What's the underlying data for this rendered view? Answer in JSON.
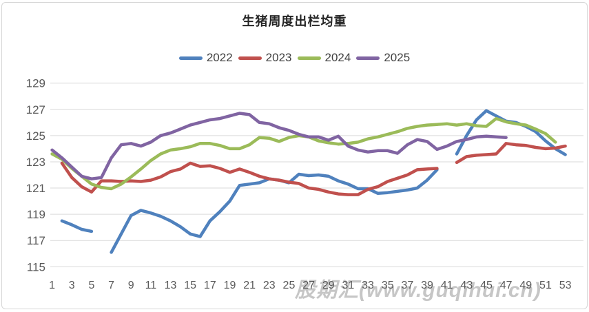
{
  "chart": {
    "title": "生猪周度出栏均重",
    "watermark": "股期汇(www.guqihui.cn)",
    "tick_color": "#595959",
    "gridline_color": "#d9d9d9"
  },
  "chart_data": {
    "type": "line",
    "title": "生猪周度出栏均重",
    "xlabel": "",
    "ylabel": "",
    "ylim": [
      115,
      129
    ],
    "y_ticks": [
      115,
      117,
      119,
      121,
      123,
      125,
      127,
      129
    ],
    "x_range": [
      1,
      53
    ],
    "x_tick_values": [
      1,
      3,
      5,
      7,
      9,
      11,
      13,
      15,
      17,
      19,
      21,
      23,
      25,
      27,
      29,
      31,
      33,
      35,
      37,
      39,
      41,
      43,
      45,
      47,
      49,
      51,
      53
    ],
    "grid": "horizontal",
    "legend_position": "top",
    "series": [
      {
        "name": "2022",
        "color": "#4F81BD",
        "values": [
          null,
          118.5,
          118.2,
          117.85,
          117.7,
          null,
          116.1,
          117.5,
          118.9,
          119.3,
          119.1,
          118.85,
          118.5,
          118.05,
          117.5,
          117.3,
          118.5,
          119.2,
          120.0,
          121.2,
          121.3,
          121.4,
          121.7,
          121.6,
          121.4,
          122.05,
          121.95,
          122.0,
          121.9,
          121.55,
          121.3,
          120.95,
          120.95,
          120.6,
          120.65,
          120.75,
          120.85,
          121.0,
          121.6,
          122.4,
          null,
          123.6,
          125.0,
          126.2,
          126.9,
          126.5,
          126.1,
          126.0,
          125.7,
          125.3,
          124.6,
          124.0,
          123.55
        ]
      },
      {
        "name": "2023",
        "color": "#C0504D",
        "values": [
          null,
          122.9,
          121.8,
          121.1,
          120.7,
          121.55,
          121.55,
          121.5,
          121.55,
          121.5,
          121.6,
          121.85,
          122.25,
          122.45,
          122.9,
          122.65,
          122.7,
          122.5,
          122.2,
          122.45,
          122.2,
          121.9,
          121.7,
          121.6,
          121.45,
          121.35,
          121.0,
          120.9,
          120.7,
          120.55,
          120.5,
          120.5,
          120.9,
          121.1,
          121.5,
          121.75,
          122.0,
          122.4,
          122.45,
          122.5,
          null,
          122.95,
          123.4,
          123.5,
          123.55,
          123.6,
          124.4,
          124.3,
          124.25,
          124.1,
          124.0,
          124.05,
          124.2
        ]
      },
      {
        "name": "2024",
        "color": "#9BBB59",
        "values": [
          123.6,
          123.2,
          122.5,
          121.9,
          121.3,
          121.05,
          120.95,
          121.3,
          121.85,
          122.45,
          123.1,
          123.6,
          123.9,
          124.0,
          124.15,
          124.4,
          124.4,
          124.25,
          124.0,
          124.0,
          124.3,
          124.85,
          124.8,
          124.55,
          124.85,
          125.0,
          124.9,
          124.6,
          124.45,
          124.35,
          124.4,
          124.5,
          124.75,
          124.9,
          125.1,
          125.3,
          125.55,
          125.7,
          125.8,
          125.85,
          125.9,
          125.8,
          125.9,
          125.75,
          125.7,
          126.3,
          126.05,
          125.9,
          125.8,
          125.5,
          125.15,
          124.5,
          null
        ]
      },
      {
        "name": "2025",
        "color": "#8064A2",
        "values": [
          123.9,
          123.3,
          122.6,
          121.9,
          121.7,
          121.8,
          123.3,
          124.3,
          124.4,
          124.2,
          124.5,
          125.0,
          125.2,
          125.5,
          125.8,
          126.0,
          126.2,
          126.3,
          126.5,
          126.7,
          126.6,
          126.0,
          125.9,
          125.6,
          125.4,
          125.1,
          124.9,
          124.9,
          124.65,
          124.95,
          124.2,
          123.9,
          123.75,
          123.85,
          123.85,
          123.65,
          124.3,
          124.7,
          124.55,
          123.95,
          124.2,
          124.55,
          124.7,
          124.9,
          124.95,
          124.9,
          124.85,
          null,
          null,
          null,
          null,
          null,
          null
        ]
      }
    ]
  }
}
